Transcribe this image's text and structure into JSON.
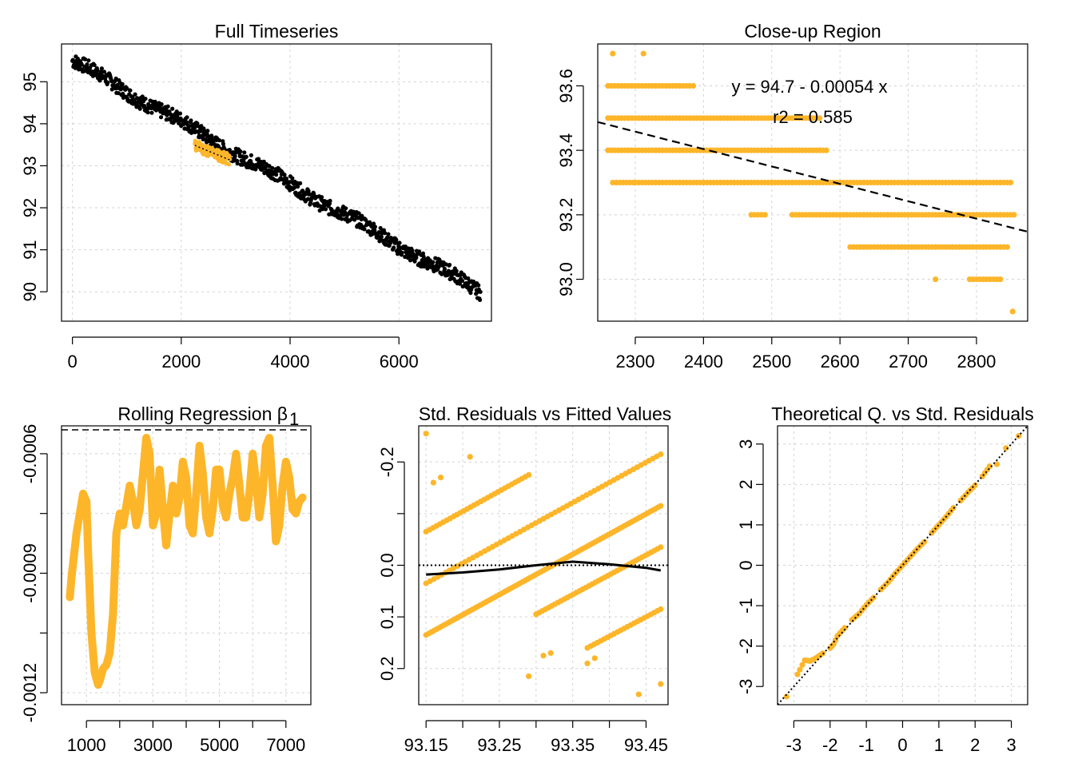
{
  "colors": {
    "accent": "#FDB62A",
    "black": "#000000",
    "grid": "#D3D3D3"
  },
  "chart_data": [
    {
      "id": "full",
      "type": "scatter",
      "title": "Full Timeseries",
      "xlabel": "",
      "ylabel": "",
      "xlim": [
        -200,
        7700
      ],
      "ylim": [
        89.3,
        95.9
      ],
      "xticks": [
        0,
        2000,
        4000,
        6000
      ],
      "xtick_labels": [
        "0",
        "2000",
        "4000",
        "6000"
      ],
      "yticks": [
        90,
        91,
        92,
        93,
        94,
        95
      ],
      "ytick_labels": [
        "90",
        "91",
        "92",
        "93",
        "94",
        "95"
      ],
      "grid": true,
      "trend": {
        "x_start": 0,
        "y_start": 95.5,
        "x_end": 7500,
        "y_end": 90.0,
        "band": 0.35
      },
      "highlight": {
        "x_start": 2250,
        "x_end": 2900,
        "intercept": 94.7,
        "slope": -0.00054
      },
      "series": [
        {
          "values_sample": [
            [
              0,
              95.6
            ],
            [
              1000,
              94.9
            ],
            [
              2000,
              93.9
            ],
            [
              3000,
              93.0
            ],
            [
              4000,
              92.4
            ],
            [
              5000,
              91.6
            ],
            [
              6000,
              91.0
            ],
            [
              7000,
              90.4
            ],
            [
              7500,
              90.0
            ]
          ]
        }
      ]
    },
    {
      "id": "closeup",
      "type": "scatter",
      "title": "Close-up Region",
      "xlabel": "",
      "ylabel": "",
      "xlim": [
        2245,
        2875
      ],
      "ylim": [
        92.87,
        93.73
      ],
      "xticks": [
        2300,
        2400,
        2500,
        2600,
        2700,
        2800
      ],
      "xtick_labels": [
        "2300",
        "2400",
        "2500",
        "2600",
        "2700",
        "2800"
      ],
      "yticks": [
        93.0,
        93.2,
        93.4,
        93.6
      ],
      "ytick_labels": [
        "93.0",
        "93.2",
        "93.4",
        "93.6"
      ],
      "grid": true,
      "fit_line": {
        "intercept": 94.7,
        "slope": -0.00054
      },
      "annotation_eq": "y = 94.7 - 0.00054 x",
      "annotation_r2": "r2 = 0.585",
      "points": [
        [
          2267,
          93.7
        ],
        [
          2312,
          93.7
        ],
        [
          2260,
          93.6
        ],
        [
          2270,
          93.6
        ],
        [
          2280,
          93.6
        ],
        [
          2290,
          93.6
        ],
        [
          2300,
          93.6
        ],
        [
          2310,
          93.6
        ],
        [
          2320,
          93.6
        ],
        [
          2330,
          93.6
        ],
        [
          2340,
          93.6
        ],
        [
          2345,
          93.6
        ],
        [
          2365,
          93.6
        ],
        [
          2385,
          93.6
        ],
        [
          2260,
          93.5
        ],
        [
          2290,
          93.5
        ],
        [
          2320,
          93.5
        ],
        [
          2350,
          93.5
        ],
        [
          2380,
          93.5
        ],
        [
          2410,
          93.5
        ],
        [
          2440,
          93.5
        ],
        [
          2470,
          93.5
        ],
        [
          2490,
          93.5
        ],
        [
          2505,
          93.5
        ],
        [
          2530,
          93.5
        ],
        [
          2555,
          93.5
        ],
        [
          2570,
          93.5
        ],
        [
          2260,
          93.4
        ],
        [
          2290,
          93.4
        ],
        [
          2320,
          93.4
        ],
        [
          2350,
          93.4
        ],
        [
          2380,
          93.4
        ],
        [
          2410,
          93.4
        ],
        [
          2440,
          93.4
        ],
        [
          2470,
          93.4
        ],
        [
          2500,
          93.4
        ],
        [
          2530,
          93.4
        ],
        [
          2560,
          93.4
        ],
        [
          2580,
          93.4
        ],
        [
          2267,
          93.3
        ],
        [
          2300,
          93.3
        ],
        [
          2320,
          93.3
        ],
        [
          2340,
          93.3
        ],
        [
          2370,
          93.3
        ],
        [
          2400,
          93.3
        ],
        [
          2430,
          93.3
        ],
        [
          2460,
          93.3
        ],
        [
          2490,
          93.3
        ],
        [
          2520,
          93.3
        ],
        [
          2550,
          93.3
        ],
        [
          2580,
          93.3
        ],
        [
          2610,
          93.3
        ],
        [
          2640,
          93.3
        ],
        [
          2670,
          93.3
        ],
        [
          2700,
          93.3
        ],
        [
          2730,
          93.3
        ],
        [
          2760,
          93.3
        ],
        [
          2790,
          93.3
        ],
        [
          2820,
          93.3
        ],
        [
          2850,
          93.3
        ],
        [
          2470,
          93.2
        ],
        [
          2490,
          93.2
        ],
        [
          2530,
          93.2
        ],
        [
          2550,
          93.2
        ],
        [
          2580,
          93.2
        ],
        [
          2600,
          93.2
        ],
        [
          2620,
          93.2
        ],
        [
          2650,
          93.2
        ],
        [
          2680,
          93.2
        ],
        [
          2710,
          93.2
        ],
        [
          2740,
          93.2
        ],
        [
          2770,
          93.2
        ],
        [
          2800,
          93.2
        ],
        [
          2830,
          93.2
        ],
        [
          2855,
          93.2
        ],
        [
          2615,
          93.1
        ],
        [
          2630,
          93.1
        ],
        [
          2660,
          93.1
        ],
        [
          2680,
          93.1
        ],
        [
          2700,
          93.1
        ],
        [
          2720,
          93.1
        ],
        [
          2750,
          93.1
        ],
        [
          2775,
          93.1
        ],
        [
          2800,
          93.1
        ],
        [
          2820,
          93.1
        ],
        [
          2845,
          93.1
        ],
        [
          2740,
          93.0
        ],
        [
          2790,
          93.0
        ],
        [
          2805,
          93.0
        ],
        [
          2820,
          93.0
        ],
        [
          2835,
          93.0
        ],
        [
          2853,
          92.9
        ]
      ]
    },
    {
      "id": "rolling",
      "type": "line",
      "title": "Rolling Regression β",
      "title_subscript": "1",
      "xlabel": "",
      "ylabel": "",
      "xlim": [
        250,
        7750
      ],
      "ylim": [
        -0.00123,
        -0.00053
      ],
      "xticks": [
        1000,
        2000,
        3000,
        4000,
        5000,
        6000,
        7000
      ],
      "xtick_labels": [
        "1000",
        "3000",
        "5000",
        "7000"
      ],
      "xtick_label_values": [
        1000,
        3000,
        5000,
        7000
      ],
      "yticks": [
        -0.0012,
        -0.00105,
        -0.0009,
        -0.00075,
        -0.0006
      ],
      "ytick_labels": [
        "-0.0012",
        "-0.0009",
        "-0.0006"
      ],
      "ytick_label_values": [
        -0.0012,
        -0.0009,
        -0.0006
      ],
      "grid": true,
      "reference_line": -0.00054,
      "x": [
        500,
        550,
        700,
        900,
        1000,
        1050,
        1150,
        1250,
        1350,
        1400,
        1500,
        1600,
        1700,
        1800,
        1900,
        2000,
        2100,
        2300,
        2400,
        2500,
        2600,
        2700,
        2800,
        2900,
        3000,
        3100,
        3200,
        3300,
        3400,
        3500,
        3600,
        3700,
        3800,
        3900,
        4000,
        4100,
        4200,
        4300,
        4400,
        4500,
        4600,
        4700,
        4800,
        4900,
        5000,
        5100,
        5200,
        5300,
        5400,
        5500,
        5600,
        5700,
        5800,
        5900,
        6000,
        6100,
        6200,
        6300,
        6400,
        6500,
        6600,
        6700,
        6800,
        6900,
        7000,
        7100,
        7200,
        7300,
        7400,
        7500
      ],
      "values": [
        -0.00096,
        -0.00091,
        -0.0008,
        -0.0007,
        -0.00072,
        -0.00085,
        -0.00105,
        -0.00115,
        -0.00118,
        -0.00117,
        -0.00114,
        -0.00113,
        -0.0011,
        -0.001,
        -0.0008,
        -0.00075,
        -0.00078,
        -0.00068,
        -0.00072,
        -0.00078,
        -0.00074,
        -0.00065,
        -0.00056,
        -0.0006,
        -0.00078,
        -0.00075,
        -0.00064,
        -0.00074,
        -0.00083,
        -0.00075,
        -0.00068,
        -0.00075,
        -0.00071,
        -0.00062,
        -0.00066,
        -0.00078,
        -0.0008,
        -0.0007,
        -0.00058,
        -0.00065,
        -0.00076,
        -0.0008,
        -0.00074,
        -0.00064,
        -0.00064,
        -0.00073,
        -0.00076,
        -0.0007,
        -0.00066,
        -0.0006,
        -0.00068,
        -0.00076,
        -0.00076,
        -0.0007,
        -0.0006,
        -0.00067,
        -0.00076,
        -0.0007,
        -0.00058,
        -0.00056,
        -0.00068,
        -0.00082,
        -0.00078,
        -0.00068,
        -0.00062,
        -0.00066,
        -0.00074,
        -0.00075,
        -0.00072,
        -0.00071
      ]
    },
    {
      "id": "resid",
      "type": "scatter",
      "title": "Std. Residuals vs Fitted Values",
      "xlabel": "",
      "ylabel": "",
      "xlim": [
        93.14,
        93.48
      ],
      "ylim": [
        0.27,
        -0.27
      ],
      "xticks": [
        93.15,
        93.2,
        93.25,
        93.3,
        93.35,
        93.4,
        93.45
      ],
      "xtick_labels": [
        "93.15",
        "93.25",
        "93.35",
        "93.45"
      ],
      "xtick_label_values": [
        93.15,
        93.25,
        93.35,
        93.45
      ],
      "yticks": [
        -0.2,
        -0.1,
        0.0,
        0.1,
        0.2
      ],
      "ytick_labels": [
        "-0.2",
        "0.0",
        "0.1",
        "0.2"
      ],
      "ytick_label_values": [
        -0.2,
        0.0,
        0.1,
        0.2
      ],
      "grid": true,
      "bands": [
        {
          "x_start": 93.15,
          "y_start": 0.035,
          "x_end": 93.47,
          "y_end": -0.215,
          "count": 60
        },
        {
          "x_start": 93.15,
          "y_start": 0.135,
          "x_end": 93.47,
          "y_end": -0.115,
          "count": 90
        },
        {
          "x_start": 93.15,
          "y_start": -0.065,
          "x_end": 93.29,
          "y_end": -0.175,
          "count": 30
        },
        {
          "x_start": 93.3,
          "y_start": 0.095,
          "x_end": 93.47,
          "y_end": -0.035,
          "count": 40
        },
        {
          "x_start": 93.37,
          "y_start": 0.16,
          "x_end": 93.47,
          "y_end": 0.085,
          "count": 22
        }
      ],
      "extra_points": [
        [
          93.15,
          -0.255
        ],
        [
          93.16,
          -0.16
        ],
        [
          93.17,
          -0.17
        ],
        [
          93.21,
          -0.21
        ],
        [
          93.29,
          0.215
        ],
        [
          93.31,
          0.175
        ],
        [
          93.32,
          0.17
        ],
        [
          93.37,
          0.19
        ],
        [
          93.38,
          0.18
        ],
        [
          93.44,
          0.25
        ],
        [
          93.47,
          0.23
        ]
      ],
      "smooth": {
        "x": [
          93.15,
          93.2,
          93.25,
          93.3,
          93.35,
          93.4,
          93.45,
          93.47
        ],
        "values": [
          0.018,
          0.014,
          0.008,
          0.0,
          -0.007,
          -0.002,
          0.005,
          0.01
        ]
      },
      "zero_line": 0.0
    },
    {
      "id": "qq",
      "type": "scatter",
      "title": "Theoretical Q. vs Std. Residuals",
      "xlabel": "",
      "ylabel": "",
      "xlim": [
        -3.45,
        3.45
      ],
      "ylim": [
        -3.45,
        3.45
      ],
      "xticks": [
        -3,
        -2,
        -1,
        0,
        1,
        2,
        3
      ],
      "xtick_labels": [
        "-3",
        "-2",
        "-1",
        "0",
        "1",
        "2",
        "3"
      ],
      "yticks": [
        -3,
        -2,
        -1,
        0,
        1,
        2,
        3
      ],
      "ytick_labels": [
        "-3",
        "-2",
        "-1",
        "0",
        "1",
        "2",
        "3"
      ],
      "grid": true,
      "points": [
        [
          -3.2,
          -3.25
        ],
        [
          -2.9,
          -2.7
        ],
        [
          -2.7,
          -2.35
        ],
        [
          -2.55,
          -2.37
        ],
        [
          -2.4,
          -2.3
        ],
        [
          -2.2,
          -2.18
        ],
        [
          -2.0,
          -2.05
        ],
        [
          -1.9,
          -1.95
        ],
        [
          -1.8,
          -1.75
        ],
        [
          -1.6,
          -1.55
        ],
        [
          -1.4,
          -1.35
        ],
        [
          -1.2,
          -1.2
        ],
        [
          -1.0,
          -0.98
        ],
        [
          -0.8,
          -0.8
        ],
        [
          -0.6,
          -0.6
        ],
        [
          -0.4,
          -0.42
        ],
        [
          -0.2,
          -0.2
        ],
        [
          0.0,
          0.0
        ],
        [
          0.2,
          0.2
        ],
        [
          0.4,
          0.4
        ],
        [
          0.6,
          0.58
        ],
        [
          0.8,
          0.8
        ],
        [
          1.0,
          1.0
        ],
        [
          1.2,
          1.2
        ],
        [
          1.4,
          1.42
        ],
        [
          1.6,
          1.6
        ],
        [
          1.8,
          1.8
        ],
        [
          2.0,
          1.98
        ],
        [
          2.2,
          2.2
        ],
        [
          2.4,
          2.45
        ],
        [
          2.6,
          2.5
        ],
        [
          2.85,
          2.9
        ],
        [
          3.2,
          3.2
        ]
      ],
      "ref_line": {
        "x": [
          -3.45,
          3.45
        ],
        "values": [
          -3.45,
          3.45
        ]
      }
    }
  ]
}
